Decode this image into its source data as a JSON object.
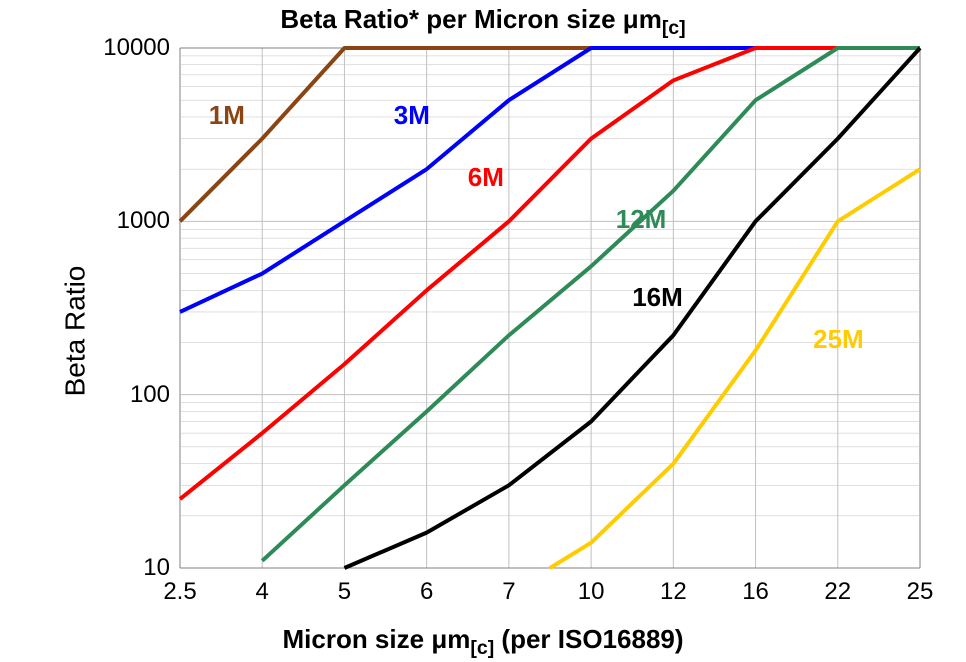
{
  "chart": {
    "type": "line",
    "title_parts": {
      "pre": "Beta Ratio* per Micron size ",
      "mu": "μ",
      "m": "m",
      "sub": "[c]"
    },
    "title_fontsize": 26,
    "ylabel": "Beta Ratio",
    "ylabel_fontsize": 28,
    "xlabel_parts": {
      "pre": "Micron size ",
      "mu": "μ",
      "m": "m",
      "sub": "[c]",
      "post": " (per ISO16889)"
    },
    "xlabel_fontsize": 26,
    "tick_fontsize": 24,
    "series_label_fontsize": 26,
    "background_color": "#ffffff",
    "grid_color": "#c0c0c0",
    "frame_color": "#808080",
    "line_width": 4,
    "x_categories": [
      "2.5",
      "4",
      "5",
      "6",
      "7",
      "10",
      "12",
      "16",
      "22",
      "25"
    ],
    "y_scale": "log",
    "y_ticks": [
      10,
      100,
      1000,
      10000
    ],
    "y_log_min": 1,
    "y_log_max": 4,
    "series": [
      {
        "name": "1M",
        "color": "#8b4513",
        "label_xy": [
          0.35,
          0.1
        ],
        "points": [
          {
            "xi": 0,
            "y": 1000
          },
          {
            "xi": 1,
            "y": 3000
          },
          {
            "xi": 2,
            "y": 10000
          },
          {
            "xi": 9,
            "y": 10000
          }
        ]
      },
      {
        "name": "3M",
        "color": "#0000ff",
        "label_xy": [
          2.6,
          0.1
        ],
        "points": [
          {
            "xi": 0,
            "y": 300
          },
          {
            "xi": 1,
            "y": 500
          },
          {
            "xi": 2,
            "y": 1000
          },
          {
            "xi": 3,
            "y": 2000
          },
          {
            "xi": 4,
            "y": 5000
          },
          {
            "xi": 5,
            "y": 10000
          },
          {
            "xi": 9,
            "y": 10000
          }
        ]
      },
      {
        "name": "6M",
        "color": "#ff0000",
        "label_xy": [
          3.5,
          0.22
        ],
        "points": [
          {
            "xi": 0,
            "y": 25
          },
          {
            "xi": 1,
            "y": 60
          },
          {
            "xi": 2,
            "y": 150
          },
          {
            "xi": 3,
            "y": 400
          },
          {
            "xi": 4,
            "y": 1000
          },
          {
            "xi": 5,
            "y": 3000
          },
          {
            "xi": 6,
            "y": 6500
          },
          {
            "xi": 7,
            "y": 10000
          },
          {
            "xi": 9,
            "y": 10000
          }
        ]
      },
      {
        "name": "12M",
        "color": "#2e8b57",
        "label_xy": [
          5.3,
          0.3
        ],
        "points": [
          {
            "xi": 1,
            "y": 11
          },
          {
            "xi": 2,
            "y": 30
          },
          {
            "xi": 3,
            "y": 80
          },
          {
            "xi": 4,
            "y": 220
          },
          {
            "xi": 5,
            "y": 550
          },
          {
            "xi": 6,
            "y": 1500
          },
          {
            "xi": 7,
            "y": 5000
          },
          {
            "xi": 8,
            "y": 10000
          },
          {
            "xi": 9,
            "y": 10000
          }
        ]
      },
      {
        "name": "16M",
        "color": "#000000",
        "label_xy": [
          5.5,
          0.45
        ],
        "points": [
          {
            "xi": 2,
            "y": 10
          },
          {
            "xi": 3,
            "y": 16
          },
          {
            "xi": 4,
            "y": 30
          },
          {
            "xi": 5,
            "y": 70
          },
          {
            "xi": 6,
            "y": 220
          },
          {
            "xi": 7,
            "y": 1000
          },
          {
            "xi": 8,
            "y": 3000
          },
          {
            "xi": 9,
            "y": 10000
          }
        ]
      },
      {
        "name": "25M",
        "color": "#ffcc00",
        "label_xy": [
          7.7,
          0.53
        ],
        "points": [
          {
            "xi": 4.5,
            "y": 10
          },
          {
            "xi": 5,
            "y": 14
          },
          {
            "xi": 6,
            "y": 40
          },
          {
            "xi": 7,
            "y": 180
          },
          {
            "xi": 8,
            "y": 1000
          },
          {
            "xi": 9,
            "y": 2000
          }
        ]
      }
    ]
  }
}
